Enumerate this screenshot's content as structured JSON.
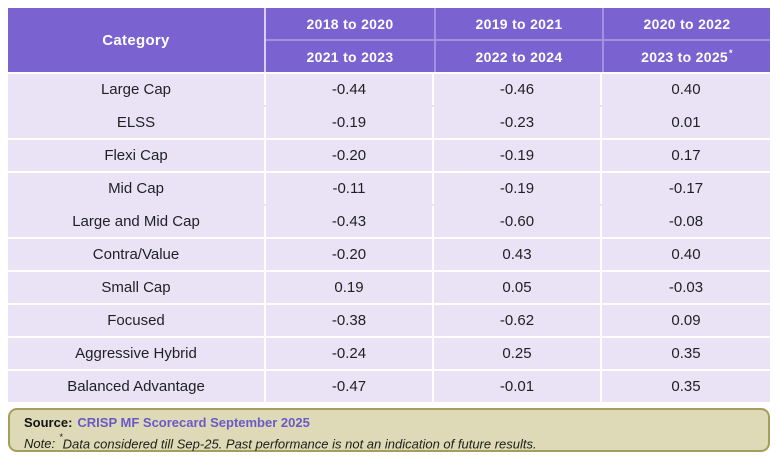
{
  "chart_data": {
    "type": "table",
    "title": "",
    "header": {
      "category": "Category",
      "period_pairs": [
        {
          "top": "2018 to 2020",
          "bottom": "2021 to 2023"
        },
        {
          "top": "2019 to 2021",
          "bottom": "2022 to 2024"
        },
        {
          "top": "2020 to 2022",
          "bottom": "2023 to 2025",
          "sup": "*"
        }
      ]
    },
    "rows": [
      {
        "category": "Large Cap",
        "values": [
          "-0.44",
          "-0.46",
          "0.40"
        ]
      },
      {
        "category": "ELSS",
        "values": [
          "-0.19",
          "-0.23",
          "0.01"
        ]
      },
      {
        "category": "Flexi Cap",
        "values": [
          "-0.20",
          "-0.19",
          "0.17"
        ]
      },
      {
        "category": "Mid Cap",
        "values": [
          "-0.11",
          "-0.19",
          "-0.17"
        ]
      },
      {
        "category": "Large and Mid Cap",
        "values": [
          "-0.43",
          "-0.60",
          "-0.08"
        ]
      },
      {
        "category": "Contra/Value",
        "values": [
          "-0.20",
          "0.43",
          "0.40"
        ]
      },
      {
        "category": "Small Cap",
        "values": [
          "0.19",
          "0.05",
          "-0.03"
        ]
      },
      {
        "category": "Focused",
        "values": [
          "-0.38",
          "-0.62",
          "0.09"
        ]
      },
      {
        "category": "Aggressive Hybrid",
        "values": [
          "-0.24",
          "0.25",
          "0.35"
        ]
      },
      {
        "category": "Balanced Advantage",
        "values": [
          "-0.47",
          "-0.01",
          "0.35"
        ]
      }
    ]
  },
  "footer": {
    "source_label": "Source:",
    "source_link": "CRISP MF Scorecard September 2025",
    "note_label": "Note:",
    "note_sup": "*",
    "note_text": "Data considered till Sep-25. Past performance is not an indication of future results."
  },
  "colors": {
    "header_bg": "#7A63D1",
    "header_divider": "#A391DF",
    "row_bg": "#E9E3F5",
    "row_separator": "#FFFFFF",
    "footer_bg": "#DED9B6",
    "footer_border": "#A49D5B",
    "link_purple": "#6C59C6",
    "text_dark": "#1F1F24"
  }
}
